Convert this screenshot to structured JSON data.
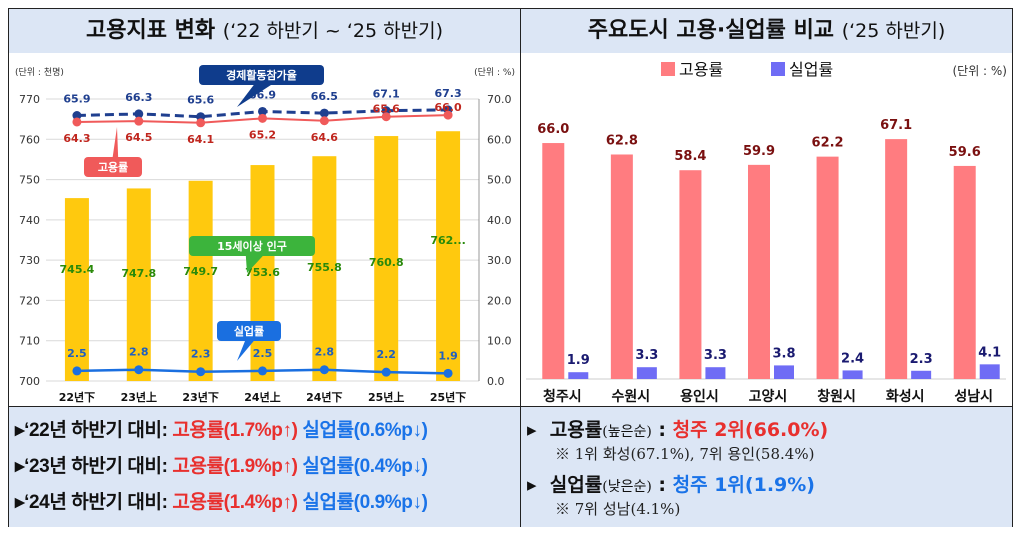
{
  "left": {
    "title": "고용지표  변화",
    "subtitle": "(‘22 하반기 ~ ‘25 하반기)",
    "bullets": [
      {
        "prefix": "‘22년 하반기 대비: ",
        "emp": "고용률(1.7%p↑)",
        "unemp": "실업률(0.6%p↓)"
      },
      {
        "prefix": "‘23년 하반기 대비: ",
        "emp": "고용률(1.9%p↑)",
        "unemp": "실업률(0.4%p↓)"
      },
      {
        "prefix": "‘24년 하반기 대비: ",
        "emp": "고용률(1.4%p↑)",
        "unemp": "실업률(0.9%p↓)"
      }
    ]
  },
  "right": {
    "title": "주요도시 고용·실업률 비교",
    "subtitle": "(‘25 하반기)",
    "emp_label": "고용률",
    "emp_order": "(높은순)",
    "emp_result": "청주  2위(66.0%)",
    "emp_note": "※ 1위 화성(67.1%), 7위 용인(58.4%)",
    "unemp_label": "실업률",
    "unemp_order": "(낮은순)",
    "unemp_result": "청주  1위(1.9%)",
    "unemp_note": "※ 7위 성남(4.1%)",
    "colon": " : "
  },
  "chart_data": [
    {
      "type": "bar+line",
      "categories": [
        "22년下",
        "23년上",
        "23년下",
        "24년上",
        "24년下",
        "25년上",
        "25년下"
      ],
      "left_unit": "(단위 : 천명)",
      "right_unit": "(단위 : %)",
      "ylim_left": [
        700,
        770
      ],
      "ylim_right": [
        0,
        70
      ],
      "yticks_left": [
        "700",
        "710",
        "720",
        "730",
        "740",
        "750",
        "760",
        "770"
      ],
      "yticks_right": [
        "0.0",
        "10.0",
        "20.0",
        "30.0",
        "40.0",
        "50.0",
        "60.0",
        "70.0"
      ],
      "grid": true,
      "series": [
        {
          "name": "15세이상 인구",
          "type": "bar",
          "axis": "left",
          "color": "#ffc90e",
          "values": [
            745.4,
            747.8,
            749.7,
            753.6,
            755.8,
            760.8,
            762.0
          ],
          "labels": [
            "745.4",
            "747.8",
            "749.7",
            "753.6",
            "755.8",
            "760.8",
            "762..."
          ]
        },
        {
          "name": "경제활동참가율",
          "type": "line-dashed",
          "axis": "right",
          "color": "#1f3f8f",
          "values": [
            65.9,
            66.3,
            65.6,
            66.9,
            66.5,
            67.1,
            67.3
          ]
        },
        {
          "name": "고용률",
          "type": "line",
          "axis": "right",
          "color": "#f05a5a",
          "values": [
            64.3,
            64.5,
            64.1,
            65.2,
            64.6,
            65.6,
            66.0
          ]
        },
        {
          "name": "실업률",
          "type": "line",
          "axis": "right",
          "color": "#1a6fe0",
          "values": [
            2.5,
            2.8,
            2.3,
            2.5,
            2.8,
            2.2,
            1.9
          ]
        }
      ]
    },
    {
      "type": "bar",
      "categories": [
        "청주시",
        "수원시",
        "용인시",
        "고양시",
        "창원시",
        "화성시",
        "성남시"
      ],
      "unit": "(단위 : %)",
      "ylim": [
        0,
        80
      ],
      "legend": "top",
      "series": [
        {
          "name": "고용률",
          "color": "#ff7c80",
          "values": [
            66.0,
            62.8,
            58.4,
            59.9,
            62.2,
            67.1,
            59.6
          ]
        },
        {
          "name": "실업률",
          "color": "#6f6cf5",
          "values": [
            1.9,
            3.3,
            3.3,
            3.8,
            2.4,
            2.3,
            4.1
          ]
        }
      ]
    }
  ]
}
